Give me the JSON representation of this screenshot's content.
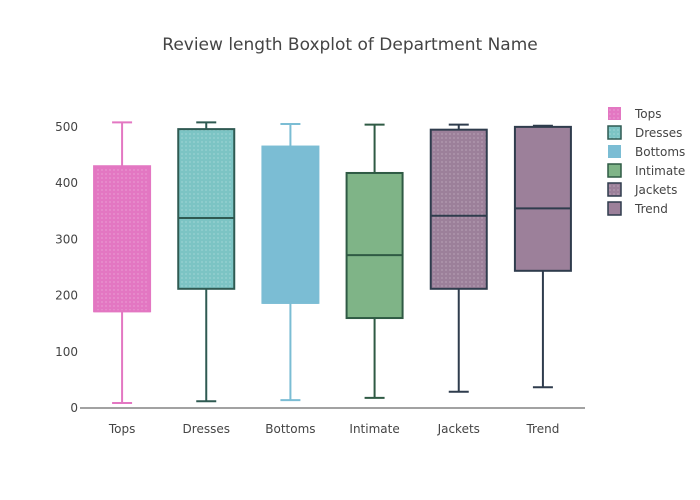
{
  "chart_data": {
    "type": "box",
    "title": "Review length Boxplot of Department Name",
    "xlabel": "",
    "ylabel": "",
    "ylim": [
      0,
      530
    ],
    "yticks": [
      0,
      100,
      200,
      300,
      400,
      500
    ],
    "grid": false,
    "legend_position": "right",
    "categories": [
      "Tops",
      "Dresses",
      "Bottoms",
      "Intimate",
      "Jackets",
      "Trend"
    ],
    "series": [
      {
        "name": "Tops",
        "min": 9,
        "q1": 172,
        "median": 172,
        "q3": 430,
        "max": 508,
        "fill": "#e377c2",
        "line": "#e377c2",
        "pattern": "dots"
      },
      {
        "name": "Dresses",
        "min": 12,
        "q1": 212,
        "median": 338,
        "q3": 496,
        "max": 508,
        "fill": "#7cc4c4",
        "line": "#2f5a52",
        "pattern": "dots"
      },
      {
        "name": "Bottoms",
        "min": 14,
        "q1": 187,
        "median": 187,
        "q3": 465,
        "max": 505,
        "fill": "#7bbdd4",
        "line": "#7bbdd4",
        "pattern": "none"
      },
      {
        "name": "Intimate",
        "min": 18,
        "q1": 160,
        "median": 272,
        "q3": 418,
        "max": 504,
        "fill": "#7fb487",
        "line": "#2f5a44",
        "pattern": "none"
      },
      {
        "name": "Jackets",
        "min": 29,
        "q1": 212,
        "median": 342,
        "q3": 495,
        "max": 504,
        "fill": "#9c809a",
        "line": "#2f3c4d",
        "pattern": "dots"
      },
      {
        "name": "Trend",
        "min": 37,
        "q1": 244,
        "median": 355,
        "q3": 500,
        "max": 502,
        "fill": "#9c809a",
        "line": "#2f3c4d",
        "pattern": "none"
      }
    ]
  }
}
